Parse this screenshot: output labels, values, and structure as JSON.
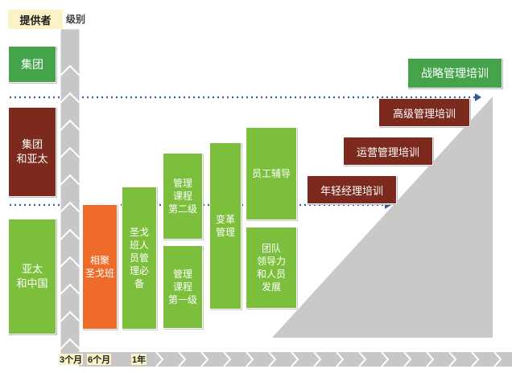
{
  "header": {
    "provider_label": "提供者",
    "level_label": "级别"
  },
  "providers": [
    {
      "label": "集团"
    },
    {
      "label": "集团\n和亚太"
    },
    {
      "label": "亚太\n和中国"
    }
  ],
  "programs": {
    "xiangju": "相聚\n圣戈班",
    "required": "圣戈\n班人\n员管\n理必\n备",
    "mgmt2": "管理\n课程\n第二级",
    "mgmt1": "管理\n课程\n第一级",
    "change": "变革\n管理",
    "coaching": "员工辅导",
    "team": "团队\n领导力\n和人员\n发展"
  },
  "trainings": {
    "young_manager": "年轻经理培训",
    "operations": "运营管理培训",
    "senior": "高级管理培训",
    "strategy": "战略管理培训"
  },
  "timeline": {
    "t1": "3个月",
    "t2": "6个月",
    "t3": "1年"
  },
  "colors": {
    "green": "#7cbf3c",
    "dark_green": "#45a34b",
    "brown": "#7b2a1d",
    "orange": "#ee6b2a",
    "dotted_line": "#2c5a9e"
  }
}
